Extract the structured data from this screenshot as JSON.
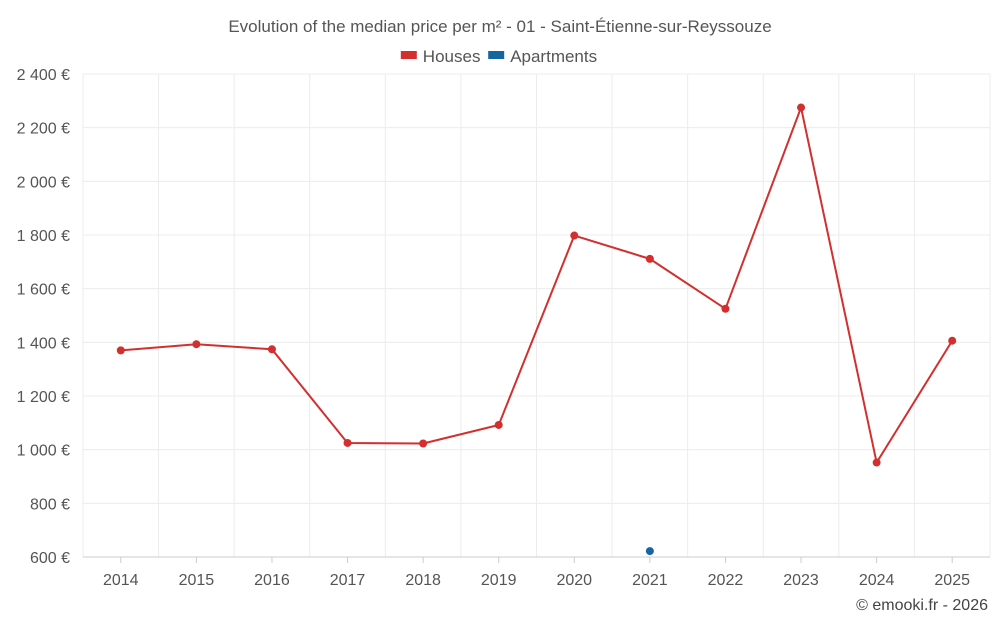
{
  "chart_data": {
    "type": "line",
    "title": "Evolution of the median price per m² - 01 - Saint-Étienne-sur-Reyssouze",
    "categories": [
      "2014",
      "2015",
      "2016",
      "2017",
      "2018",
      "2019",
      "2020",
      "2021",
      "2022",
      "2023",
      "2024",
      "2025"
    ],
    "ylim": [
      600,
      2400
    ],
    "y_ticks": [
      600,
      800,
      1000,
      1200,
      1400,
      1600,
      1800,
      2000,
      2200,
      2400
    ],
    "y_tick_labels": [
      "600 €",
      "800 €",
      "1 000 €",
      "1 200 €",
      "1 400 €",
      "1 600 €",
      "1 800 €",
      "2 000 €",
      "2 200 €",
      "2 400 €"
    ],
    "grid": true,
    "legend_position": "top-center",
    "series": [
      {
        "name": "Houses",
        "color": "#d32f2f",
        "values": [
          1370,
          1393,
          1374,
          1025,
          1023,
          1092,
          1798,
          1711,
          1525,
          2275,
          952,
          1406
        ]
      },
      {
        "name": "Apartments",
        "color": "#1565a0",
        "values": [
          null,
          null,
          null,
          null,
          null,
          null,
          null,
          622,
          null,
          null,
          null,
          null
        ]
      }
    ]
  },
  "credit": "© emooki.fr - 2026"
}
